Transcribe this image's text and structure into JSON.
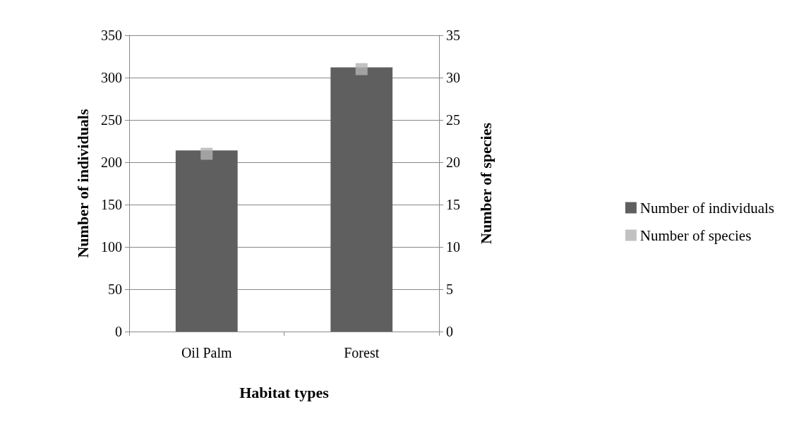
{
  "chart_data": {
    "type": "bar",
    "xlabel": "Habitat types",
    "ylabel": "Number of individuals",
    "y2label": "Number of species",
    "categories": [
      "Oil Palm",
      "Forest"
    ],
    "series": [
      {
        "name": "Number of individuals",
        "color": "#5f5f5f",
        "values": [
          214,
          312
        ]
      },
      {
        "name": "Number of species",
        "type": "scatter",
        "axis": "y2",
        "color": "#b3b3b3",
        "values": [
          21,
          31
        ]
      }
    ],
    "ylim": [
      0,
      350
    ],
    "yticks": [
      0,
      50,
      100,
      150,
      200,
      250,
      300,
      350
    ],
    "y2lim": [
      0,
      35
    ],
    "y2ticks": [
      0,
      5,
      10,
      15,
      20,
      25,
      30,
      35
    ],
    "grid": "y",
    "legend": "right",
    "marker": "square"
  }
}
